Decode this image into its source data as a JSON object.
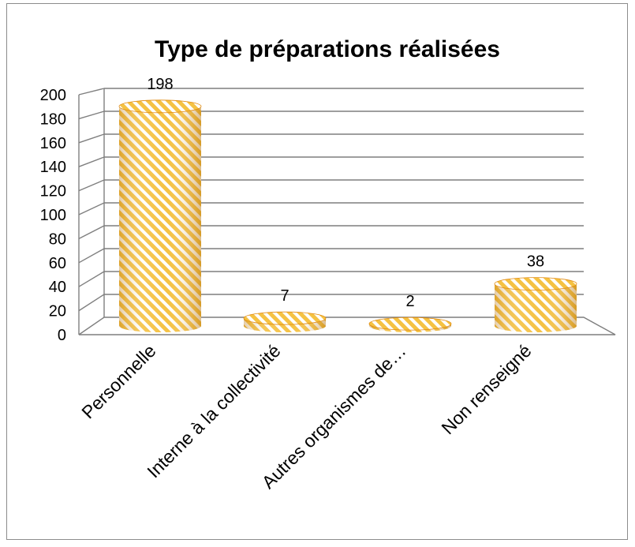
{
  "chart_data": {
    "type": "bar",
    "style": "3d-cylinder",
    "title": "Type de préparations réalisées",
    "categories": [
      "Personnelle",
      "Interne à la collectivité",
      "Autres organismes de…",
      "Non renseigné"
    ],
    "values": [
      198,
      7,
      2,
      38
    ],
    "data_labels": [
      "198",
      "7",
      "2",
      "38"
    ],
    "ylim": [
      0,
      200
    ],
    "y_ticks": [
      "0",
      "20",
      "40",
      "60",
      "80",
      "100",
      "120",
      "140",
      "160",
      "180",
      "200"
    ],
    "grid": true,
    "legend": "none",
    "colors": {
      "bar_base": "#f5c243",
      "bar_stripe": "#ffffff",
      "bar_dark": "#e08a10",
      "grid": "#7f7f7f"
    }
  }
}
